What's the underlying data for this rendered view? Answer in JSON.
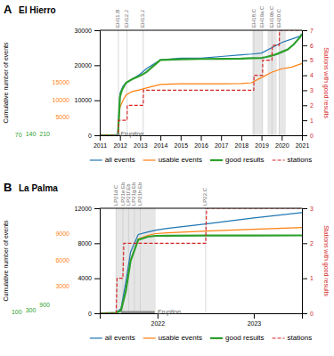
{
  "chart_data": [
    {
      "type": "line",
      "title": "El Hierro",
      "ylabel": "Cumulative number of events",
      "y2label": "Stations with good results",
      "xlim": [
        2011.0,
        2021.0
      ],
      "xticks": [
        2011,
        2012,
        2013,
        2014,
        2015,
        2016,
        2017,
        2018,
        2019,
        2020,
        2021
      ],
      "ylim": [
        0,
        30000
      ],
      "yticks": [
        0,
        10000,
        20000,
        30000
      ],
      "y2lim": [
        0,
        7
      ],
      "y2ticks": [
        0,
        1,
        2,
        3,
        4,
        5,
        6,
        7
      ],
      "usable_ticks": [
        5000,
        10000,
        15000
      ],
      "good_ticks": [
        70,
        140,
        210
      ],
      "grid": false,
      "legend": "bottom",
      "series": [
        {
          "name": "all events",
          "line_style": "solid",
          "x": [
            2011.0,
            2011.83,
            2011.9,
            2012.0,
            2012.15,
            2012.3,
            2012.6,
            2013.0,
            2013.3,
            2014.0,
            2015.0,
            2016.0,
            2017.0,
            2018.0,
            2018.5,
            2019.0,
            2019.5,
            2020.0,
            2020.5,
            2021.0
          ],
          "values": [
            0,
            0,
            800,
            12000,
            14000,
            15000,
            16000,
            17500,
            19000,
            21500,
            22000,
            22000,
            22500,
            23000,
            23200,
            23500,
            25000,
            26500,
            27500,
            28500
          ]
        },
        {
          "name": "usable events",
          "line_style": "solid",
          "x": [
            2011.0,
            2011.83,
            2011.9,
            2012.0,
            2012.15,
            2012.3,
            2012.6,
            2013.0,
            2013.3,
            2014.0,
            2015.0,
            2016.0,
            2017.0,
            2018.0,
            2018.5,
            2019.0,
            2019.5,
            2020.0,
            2020.5,
            2021.0
          ],
          "values": [
            0,
            0,
            500,
            8000,
            10000,
            11500,
            12500,
            13000,
            13500,
            14500,
            14700,
            14700,
            14700,
            14800,
            15000,
            16500,
            18000,
            19000,
            19500,
            20500
          ]
        },
        {
          "name": "good results",
          "line_style": "solid",
          "x": [
            2011.0,
            2011.83,
            2011.9,
            2012.0,
            2012.05,
            2012.1,
            2012.2,
            2012.3,
            2012.6,
            2013.0,
            2013.3,
            2014.0,
            2015.0,
            2016.0,
            2017.0,
            2018.0,
            2018.5,
            2019.0,
            2019.2,
            2019.4,
            2019.6,
            2019.8,
            2020.0,
            2020.3,
            2020.6,
            2020.9,
            2021.0
          ],
          "values": [
            0,
            0,
            50,
            11000,
            12000,
            13000,
            14000,
            15000,
            16000,
            17000,
            18000,
            21500,
            21700,
            21800,
            21850,
            21900,
            22000,
            22100,
            22300,
            22600,
            22900,
            23300,
            23800,
            24500,
            26000,
            28000,
            29000
          ]
        },
        {
          "name": "stations",
          "line_style": "dashed",
          "axis": "y2",
          "x": [
            2011.0,
            2011.92,
            2011.93,
            2012.35,
            2012.36,
            2013.15,
            2013.16,
            2018.62,
            2018.63,
            2019.05,
            2019.06,
            2019.52,
            2019.53,
            2019.88,
            2019.89,
            2021.0
          ],
          "values": [
            0,
            0,
            1,
            1,
            2,
            2,
            3,
            3,
            4,
            4,
            5,
            5,
            6,
            6,
            7,
            7
          ]
        }
      ],
      "shaded_regions": [
        {
          "xmin": 2018.55,
          "xmax": 2019.05
        },
        {
          "xmin": 2019.3,
          "xmax": 2019.75
        },
        {
          "xmin": 2019.85,
          "xmax": 2020.2
        }
      ],
      "station_lines": [
        {
          "x": 2011.92,
          "label": "EH11.B"
        },
        {
          "x": 2012.35,
          "label": "EH12.J"
        },
        {
          "x": 2013.15,
          "label": "EH13.J"
        },
        {
          "x": 2018.62,
          "label": "EH18.C"
        },
        {
          "x": 2019.05,
          "label": "EH19a.C"
        },
        {
          "x": 2019.52,
          "label": "EH19b.C"
        },
        {
          "x": 2019.88,
          "label": "EH20.C"
        }
      ],
      "eruption_bar": {
        "xmin": 2011.83,
        "xmax": 2011.99,
        "ymin": 0,
        "ymax": 600
      },
      "annotations": [
        {
          "text": "A"
        },
        {
          "text": "Eruption",
          "x": 2012.02,
          "y": 300
        }
      ]
    },
    {
      "type": "line",
      "title": "La Palma",
      "ylabel": "Cumulative number of events",
      "y2label": "Stations with good results",
      "xlim": [
        2021.4,
        2023.5
      ],
      "xticks": [
        2022,
        2023
      ],
      "ylim": [
        0,
        12000
      ],
      "yticks": [
        0,
        4000,
        8000,
        12000
      ],
      "y2lim": [
        0,
        3
      ],
      "y2ticks": [
        0,
        1,
        2,
        3
      ],
      "usable_ticks": [
        3000,
        6000,
        9000
      ],
      "good_ticks": [
        100,
        300,
        900
      ],
      "grid": false,
      "legend": "bottom",
      "series": [
        {
          "name": "all events",
          "line_style": "solid",
          "x": [
            2021.4,
            2021.57,
            2021.62,
            2021.67,
            2021.72,
            2021.8,
            2021.9,
            2021.98,
            2022.1,
            2022.5,
            2023.0,
            2023.5
          ],
          "values": [
            0,
            100,
            500,
            3500,
            7000,
            9000,
            9300,
            9500,
            9700,
            10200,
            10900,
            11500
          ]
        },
        {
          "name": "usable events",
          "line_style": "solid",
          "x": [
            2021.4,
            2021.57,
            2021.62,
            2021.67,
            2021.72,
            2021.8,
            2021.9,
            2021.98,
            2022.1,
            2022.5,
            2023.0,
            2023.5
          ],
          "values": [
            0,
            50,
            300,
            2500,
            6000,
            8500,
            8900,
            9100,
            9200,
            9400,
            9600,
            9800
          ]
        },
        {
          "name": "good results",
          "line_style": "solid",
          "x": [
            2021.4,
            2021.57,
            2021.62,
            2021.67,
            2021.72,
            2021.8,
            2021.9,
            2021.98,
            2022.1,
            2022.5,
            2023.0,
            2023.5
          ],
          "values": [
            0,
            50,
            300,
            2500,
            6000,
            8400,
            8750,
            8850,
            8870,
            8880,
            8890,
            8900
          ]
        },
        {
          "name": "stations",
          "line_style": "dashed",
          "axis": "y2",
          "x": [
            2021.4,
            2021.57,
            2021.58,
            2021.64,
            2021.65,
            2021.98,
            2022.5,
            2022.51,
            2023.5
          ],
          "values": [
            0,
            0,
            1,
            1,
            2,
            2,
            2,
            3,
            3
          ]
        }
      ],
      "shaded_regions": [
        {
          "xmin": 2021.57,
          "xmax": 2021.98
        }
      ],
      "station_lines": [
        {
          "x": 2021.57,
          "label": "LP21d.C"
        },
        {
          "x": 2021.64,
          "label": "LP21e.Eb"
        },
        {
          "x": 2021.7,
          "label": "LP21f.Eb"
        },
        {
          "x": 2021.76,
          "label": "LP21g.Eb"
        },
        {
          "x": 2021.82,
          "label": "LP21h.Eb"
        },
        {
          "x": 2022.5,
          "label": "LP22.C"
        }
      ],
      "eruption_bar": {
        "xmin": 2021.62,
        "xmax": 2021.97,
        "ymin": 0,
        "ymax": 250
      },
      "annotations": [
        {
          "text": "B"
        },
        {
          "text": "Eruption",
          "x": 2022.0,
          "y": 125
        }
      ]
    }
  ]
}
